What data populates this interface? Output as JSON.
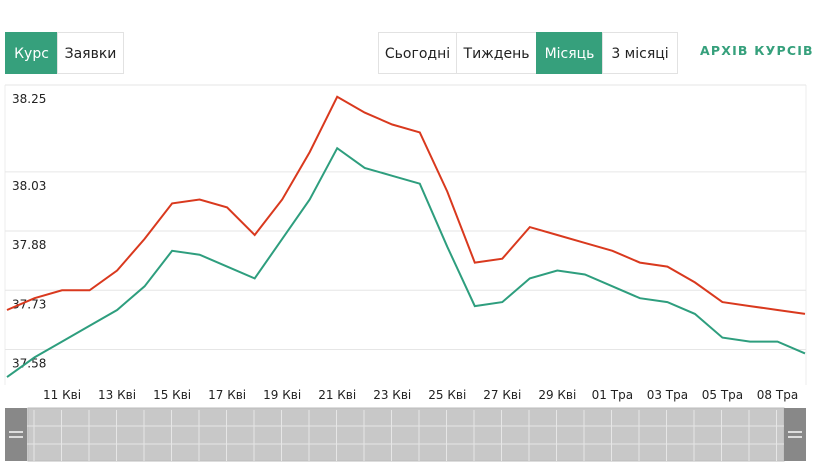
{
  "tabs": [
    "Курс",
    "Заявки"
  ],
  "periods": [
    "Сьогодні",
    "Тиждень",
    "Місяць",
    "3 місяці"
  ],
  "archive_link": "АРХІВ КУРСІВ",
  "chart_data": {
    "type": "line",
    "categories": [
      null,
      null,
      "11 Кві",
      null,
      "13 Кві",
      null,
      "15 Кві",
      null,
      "17 Кві",
      null,
      "19 Кві",
      null,
      "21 Кві",
      null,
      "23 Кві",
      null,
      "25 Кві",
      null,
      "27 Кві",
      null,
      "29 Кві",
      null,
      "01 Тра",
      null,
      "03 Тра",
      null,
      "05 Тра",
      null,
      "08 Тра",
      null
    ],
    "series": [
      {
        "color": "#d9391e",
        "values": [
          37.68,
          37.71,
          37.73,
          37.73,
          37.78,
          37.86,
          37.95,
          37.96,
          37.94,
          37.87,
          37.96,
          38.08,
          38.22,
          38.18,
          38.15,
          38.13,
          37.98,
          37.8,
          37.81,
          37.89,
          37.87,
          37.85,
          37.83,
          37.8,
          37.79,
          37.75,
          37.7,
          37.69,
          37.68,
          37.67
        ]
      },
      {
        "color": "#2e9e7e",
        "values": [
          37.51,
          37.56,
          37.6,
          37.64,
          37.68,
          37.74,
          37.83,
          37.82,
          37.79,
          37.76,
          37.86,
          37.96,
          38.09,
          38.04,
          38.02,
          38.0,
          37.84,
          37.69,
          37.7,
          37.76,
          37.78,
          37.77,
          37.74,
          37.71,
          37.7,
          37.67,
          37.61,
          37.6,
          37.6,
          37.57
        ]
      }
    ],
    "ylim": [
      37.49,
      38.25
    ],
    "yticks": [
      37.58,
      37.73,
      37.88,
      38.03,
      38.25
    ],
    "grid": true
  }
}
